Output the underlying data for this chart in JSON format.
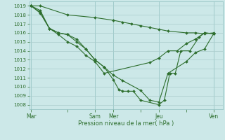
{
  "xlabel": "Pression niveau de la mer( hPa )",
  "bg_color": "#cce8e8",
  "grid_color": "#aacccc",
  "line_color": "#2d6e2d",
  "ylim": [
    1007.5,
    1019.5
  ],
  "yticks": [
    1008,
    1009,
    1010,
    1011,
    1012,
    1013,
    1014,
    1015,
    1016,
    1017,
    1018,
    1019
  ],
  "xtick_labels": [
    "Mar",
    "",
    "Sam",
    "Mer",
    "",
    "Jeu",
    "",
    "Ven"
  ],
  "xtick_positions": [
    0,
    2,
    3.5,
    4.5,
    6,
    7,
    8.5,
    10
  ],
  "xlim": [
    -0.1,
    10.5
  ],
  "vline_positions": [
    0,
    3.5,
    4.5,
    7.0,
    10.0
  ],
  "series": [
    {
      "x": [
        0,
        0.5,
        2.0,
        3.5,
        4.5,
        5.0,
        5.5,
        6.0,
        6.5,
        7.0,
        7.5,
        8.5,
        9.0,
        9.5,
        10.0
      ],
      "y": [
        1019,
        1019,
        1018,
        1017.7,
        1017.4,
        1017.2,
        1017.0,
        1016.8,
        1016.6,
        1016.4,
        1016.2,
        1016.0,
        1016.0,
        1015.9,
        1016.0
      ]
    },
    {
      "x": [
        0,
        0.5,
        1.0,
        1.5,
        2.0,
        2.5,
        3.0,
        3.5,
        4.0,
        4.5,
        4.8,
        5.0,
        5.3,
        5.6,
        6.0,
        7.0,
        7.3,
        7.6,
        7.9,
        8.2,
        8.7,
        9.2,
        9.5,
        10.0
      ],
      "y": [
        1019,
        1018.5,
        1016.5,
        1016.0,
        1015.8,
        1015.0,
        1014.2,
        1013.0,
        1012.2,
        1010.8,
        1009.7,
        1009.5,
        1009.5,
        1009.5,
        1008.5,
        1008.0,
        1008.5,
        1011.5,
        1011.5,
        1014.0,
        1014.0,
        1015.5,
        1016.0,
        1015.9
      ]
    },
    {
      "x": [
        0,
        0.5,
        1.0,
        1.5,
        2.0,
        2.5,
        3.0,
        3.5,
        4.0,
        4.5,
        5.0,
        6.0,
        6.5,
        7.0,
        7.5,
        8.5,
        9.0,
        9.5,
        10.0
      ],
      "y": [
        1019,
        1018.2,
        1016.5,
        1016.0,
        1015.8,
        1015.3,
        1014.2,
        1013.0,
        1012.2,
        1011.3,
        1010.7,
        1009.6,
        1008.5,
        1008.3,
        1011.5,
        1012.8,
        1013.8,
        1014.2,
        1015.9
      ]
    },
    {
      "x": [
        0,
        0.5,
        1.0,
        1.5,
        2.0,
        2.5,
        3.0,
        3.5,
        4.0,
        6.5,
        7.0,
        7.5,
        8.0,
        8.5,
        9.0,
        9.5,
        10.0
      ],
      "y": [
        1019,
        1018.3,
        1016.5,
        1015.8,
        1015.0,
        1014.5,
        1013.5,
        1012.8,
        1011.5,
        1012.7,
        1013.2,
        1014.0,
        1014.0,
        1014.8,
        1015.3,
        1016.0,
        1015.9
      ]
    }
  ]
}
